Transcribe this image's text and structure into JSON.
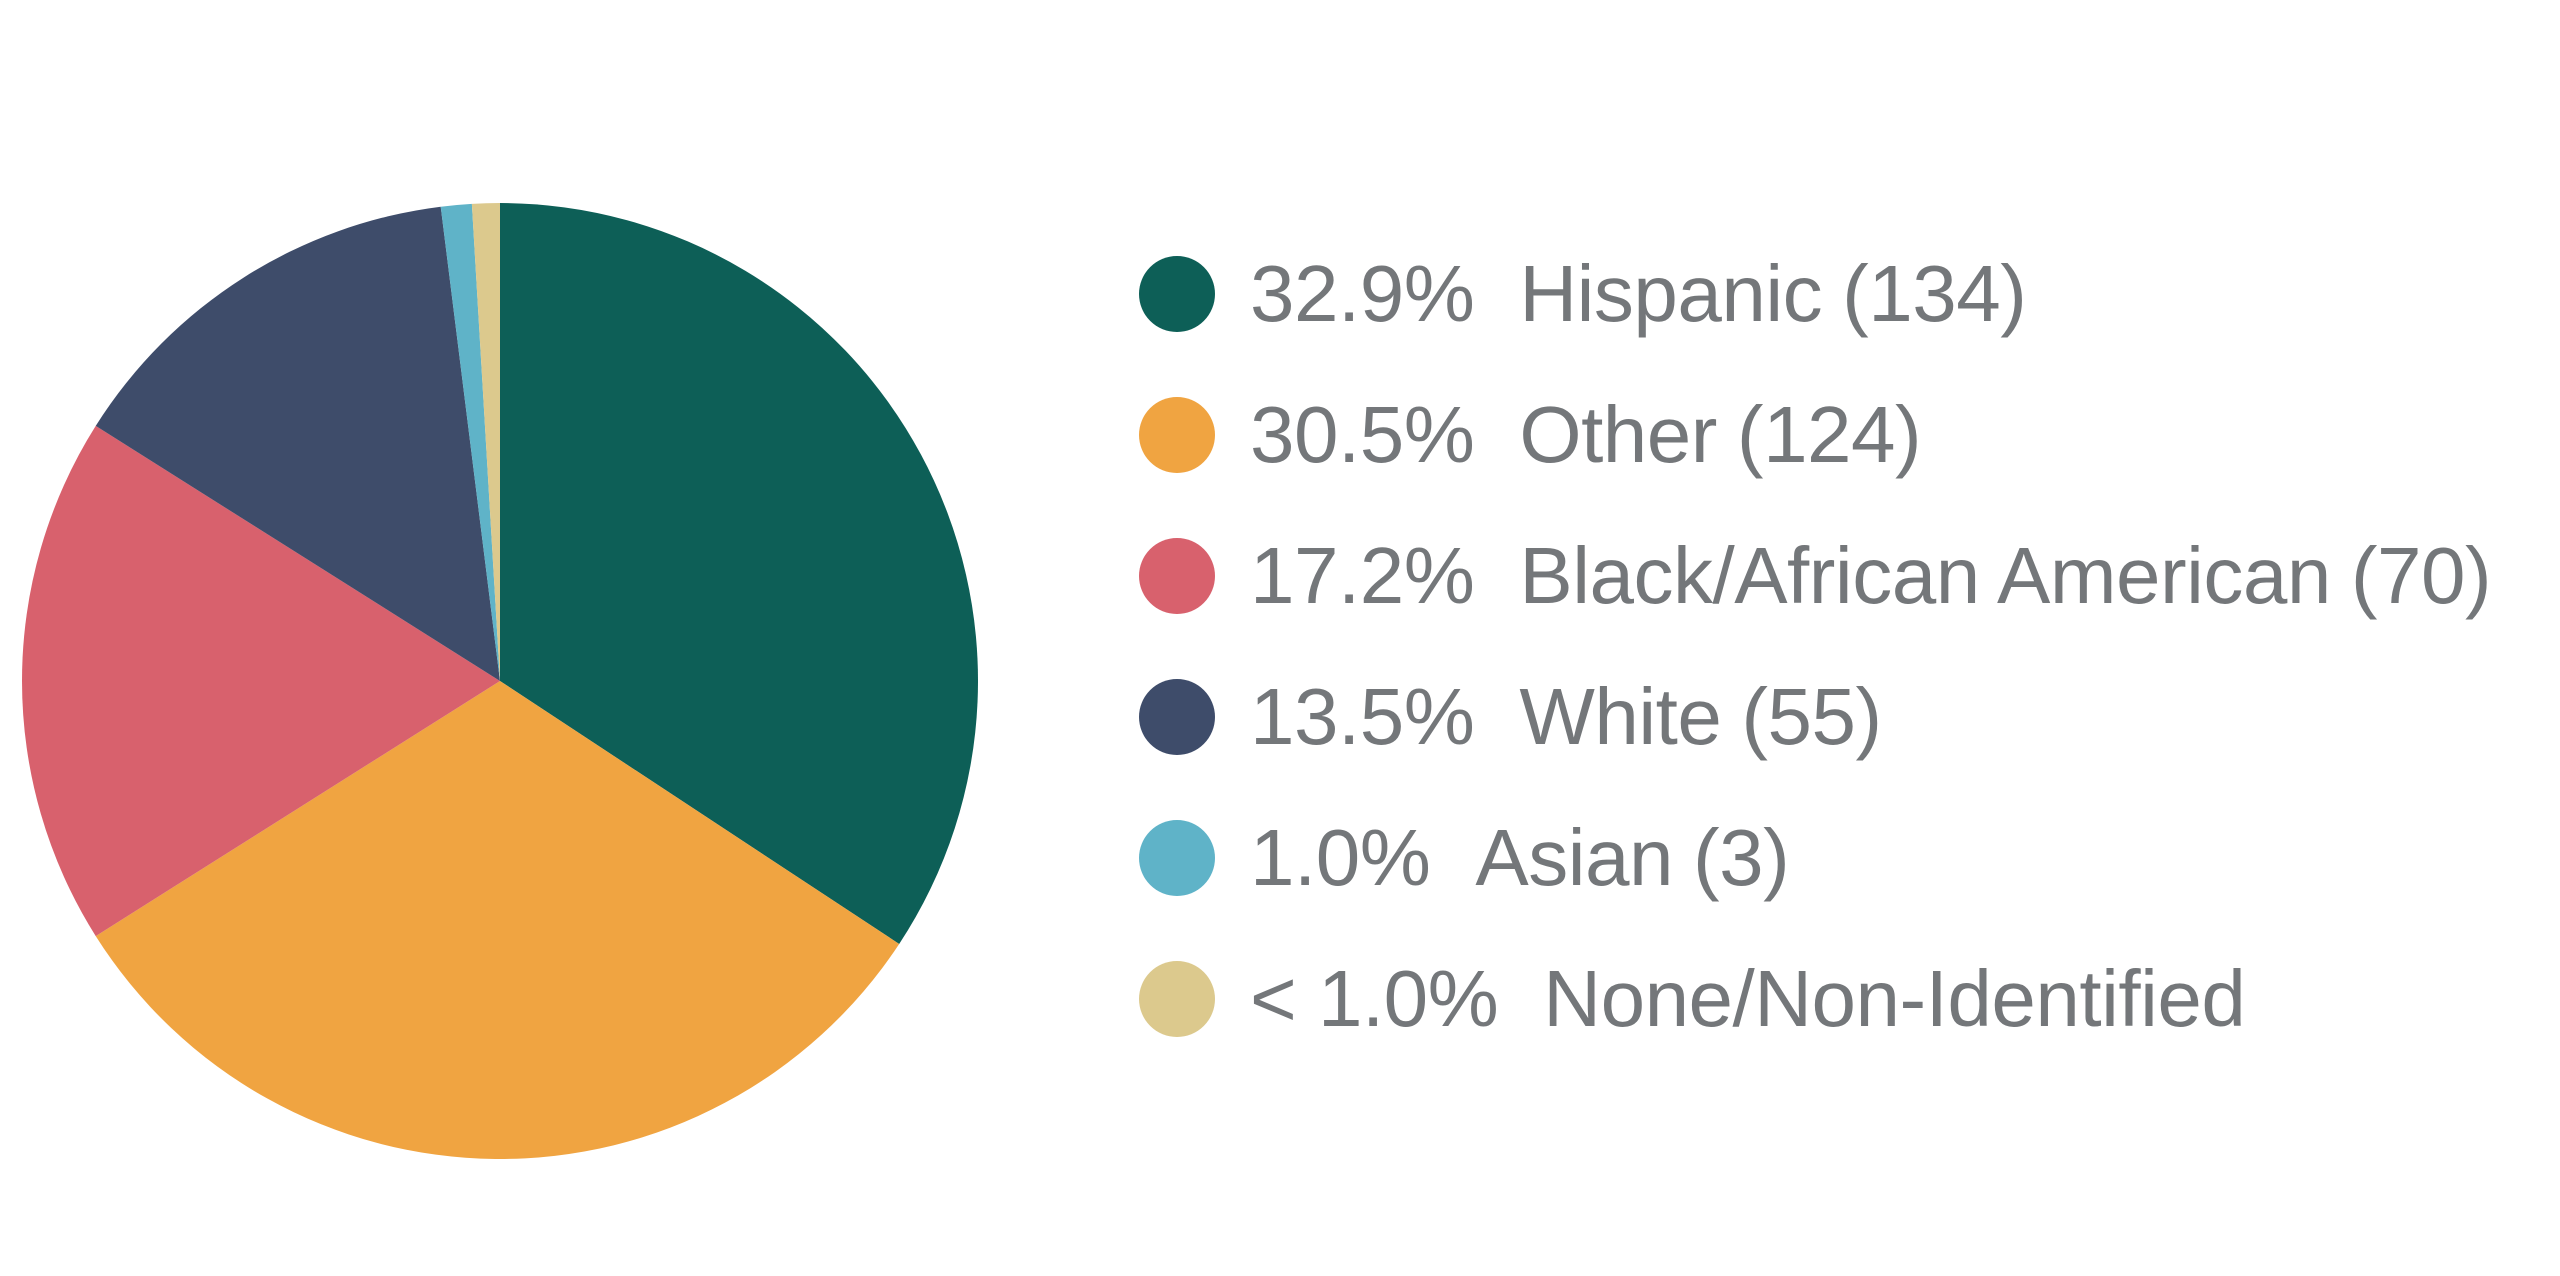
{
  "background_color": "#ffffff",
  "text_color": "#74777a",
  "chart_data": {
    "type": "pie",
    "title": "",
    "legend_position": "right",
    "start_angle": "top",
    "direction": "clockwise",
    "slices": [
      {
        "label": "Hispanic",
        "pct_label": "32.9%",
        "value_pct": 32.9,
        "count": 134,
        "count_label": "(134)",
        "color": "#0d5f57"
      },
      {
        "label": "Other",
        "pct_label": "30.5%",
        "value_pct": 30.5,
        "count": 124,
        "count_label": "(124)",
        "color": "#f0a441"
      },
      {
        "label": "Black/African American",
        "pct_label": "17.2%",
        "value_pct": 17.2,
        "count": 70,
        "count_label": "(70)",
        "color": "#d8616d"
      },
      {
        "label": "White",
        "pct_label": "13.5%",
        "value_pct": 13.5,
        "count": 55,
        "count_label": "(55)",
        "color": "#3e4c6a"
      },
      {
        "label": "Asian",
        "pct_label": "1.0%",
        "value_pct": 1.0,
        "count": 3,
        "count_label": "(3)",
        "color": "#5fb3c8"
      },
      {
        "label": "None/Non-Identified",
        "pct_label": "< 1.0%",
        "value_pct": 0.9,
        "count": null,
        "count_label": "",
        "color": "#dcc98d"
      }
    ]
  }
}
